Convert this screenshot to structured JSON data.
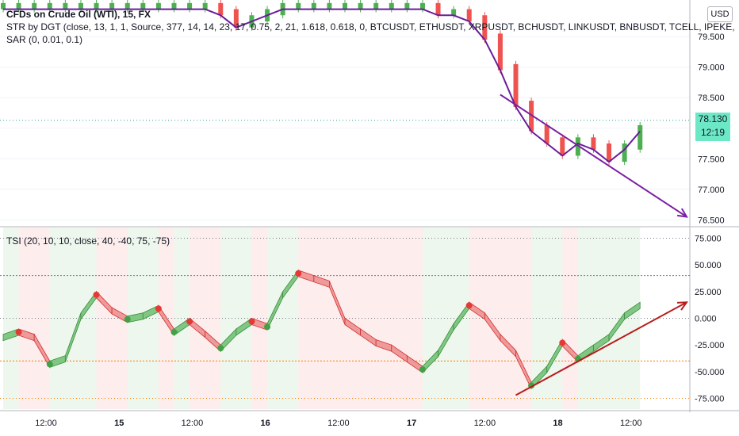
{
  "legend": {
    "main": {
      "symbol": "CFDs on Crude Oil (WTI), 15, FX",
      "str_indicator": "STR by DGT (close, 13, 1, 1, Source, 377, 14, 14, 23, 17, 0.75, 2, 21, 1.618, 0.618, 0, BTCUSDT, ETHUSDT, XRPUSDT, BCHUSDT, LINKUSDT, BNBUSDT, TCELL, IPEKE,",
      "sar_indicator": "SAR (0, 0.01, 0.1)"
    },
    "tsi": "TSI (20, 10, 10, close, 40, -40, 75, -75)"
  },
  "price_scale": {
    "currency_button": "USD",
    "current_price": "78.130",
    "countdown": "12:19"
  },
  "colors": {
    "up": "#26a69a",
    "down": "#ef5350",
    "candle_up": "#4caf50",
    "str_line": "#6a1b9a",
    "arrow_price": "#7b1fa2",
    "arrow_tsi": "#b71c1c",
    "tsi_up_fill": "#81c784",
    "tsi_down_fill": "#ef9a9a",
    "price_tag": "#6ce8c6"
  },
  "chart_data": [
    {
      "type": "candlestick",
      "title": "CFDs on Crude Oil (WTI), 15, FX",
      "ylim": [
        76.4,
        80.1
      ],
      "y_ticks": [
        "79.500",
        "79.000",
        "78.500",
        "78.000",
        "77.500",
        "77.000",
        "76.500"
      ],
      "x_ticks": [
        "12:00",
        "15",
        "12:00",
        "16",
        "12:00",
        "17",
        "12:00",
        "18",
        "12:00"
      ],
      "current_price": 78.13,
      "close_series": {
        "x": [
          0,
          2,
          4,
          6,
          8,
          10,
          12,
          14,
          16,
          18,
          20,
          22,
          24,
          26,
          28,
          30,
          32,
          34,
          36,
          38,
          40,
          42,
          44,
          46,
          48,
          50,
          52,
          54,
          56,
          58,
          60,
          62,
          64,
          66,
          68,
          70,
          72,
          74,
          76,
          78,
          80,
          82
        ],
        "values": [
          80.0,
          80.0,
          80.0,
          80.0,
          80.0,
          80.0,
          80.0,
          80.0,
          80.0,
          80.0,
          80.0,
          80.0,
          80.0,
          80.0,
          79.9,
          79.7,
          79.8,
          79.9,
          80.0,
          80.0,
          80.0,
          80.0,
          80.0,
          80.0,
          80.0,
          80.0,
          80.0,
          80.0,
          79.9,
          79.9,
          79.8,
          79.5,
          79.0,
          78.4,
          78.0,
          77.8,
          77.6,
          77.8,
          77.7,
          77.5,
          77.7,
          78.0
        ]
      },
      "annotation_arrow": {
        "from": [
          64,
          78.55
        ],
        "to": [
          88,
          76.55
        ]
      }
    },
    {
      "type": "area",
      "title": "TSI (20, 10, 10, close, 40, -40, 75, -75)",
      "ylim": [
        -85,
        85
      ],
      "y_ticks": [
        "75.000",
        "50.000",
        "25.000",
        "0.000",
        "-25.000",
        "-50.000",
        "-75.000"
      ],
      "levels": [
        40,
        -40,
        75,
        -75
      ],
      "series": [
        {
          "x": [
            0,
            2,
            4,
            6,
            8,
            10,
            12,
            14,
            16,
            18,
            20,
            22,
            24,
            26,
            28,
            30,
            32,
            34,
            36,
            38,
            40,
            42,
            44,
            46,
            48,
            50,
            52,
            54,
            56,
            58,
            60,
            62,
            64,
            66,
            68,
            70,
            72,
            74,
            76,
            78,
            80,
            82
          ],
          "values": [
            -15,
            -10,
            -15,
            -40,
            -35,
            5,
            25,
            10,
            2,
            5,
            12,
            -10,
            0,
            -12,
            -25,
            -10,
            0,
            -5,
            25,
            45,
            40,
            35,
            0,
            -10,
            -20,
            -25,
            -35,
            -45,
            -30,
            -5,
            15,
            5,
            -15,
            -30,
            -60,
            -45,
            -20,
            -35,
            -25,
            -15,
            5,
            15
          ]
        }
      ],
      "annotation_arrow": {
        "from": [
          66,
          -72
        ],
        "to": [
          88,
          15
        ]
      }
    }
  ]
}
